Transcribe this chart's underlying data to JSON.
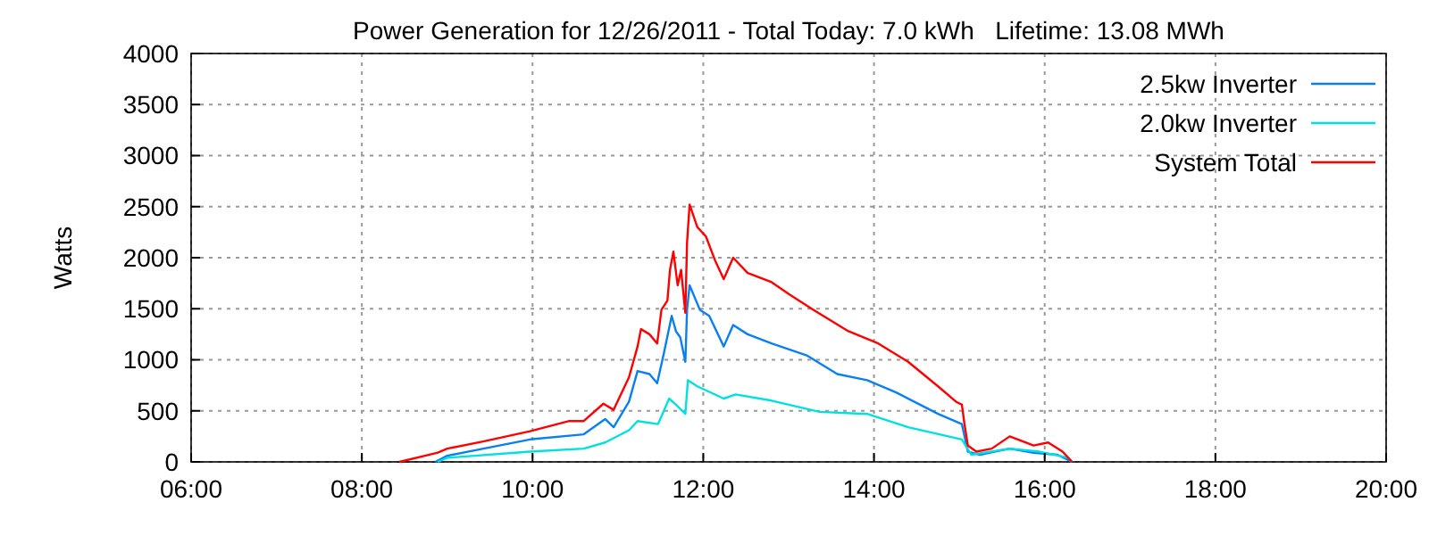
{
  "chart_data": {
    "type": "line",
    "title": "Power Generation for 12/26/2011 - Total Today: 7.0 kWh   Lifetime: 13.08 MWh",
    "ylabel": "Watts",
    "xlim": [
      6,
      20
    ],
    "xticks": [
      {
        "value": 6,
        "label": "06:00"
      },
      {
        "value": 8,
        "label": "08:00"
      },
      {
        "value": 10,
        "label": "10:00"
      },
      {
        "value": 12,
        "label": "12:00"
      },
      {
        "value": 14,
        "label": "14:00"
      },
      {
        "value": 16,
        "label": "16:00"
      },
      {
        "value": 18,
        "label": "18:00"
      },
      {
        "value": 20,
        "label": "20:00"
      }
    ],
    "ylim": [
      0,
      4000
    ],
    "yticks": [
      0,
      500,
      1000,
      1500,
      2000,
      2500,
      3000,
      3500,
      4000
    ],
    "grid": true,
    "legend": "top right",
    "line_style": "solid",
    "marker": "none",
    "series": [
      {
        "name": "2.5kw Inverter",
        "color": "#0a80f0",
        "x": [
          8.86,
          9.0,
          9.97,
          10.6,
          10.85,
          10.95,
          11.13,
          11.23,
          11.37,
          11.46,
          11.54,
          11.63,
          11.68,
          11.73,
          11.79,
          11.81,
          11.84,
          11.96,
          12.07,
          12.24,
          12.35,
          12.52,
          12.8,
          13.22,
          13.57,
          13.92,
          14.26,
          14.75,
          15.03,
          15.1,
          15.24,
          15.59,
          15.87,
          16.15,
          16.32
        ],
        "values": [
          0,
          60,
          220,
          270,
          420,
          340,
          590,
          890,
          860,
          770,
          1070,
          1430,
          1280,
          1220,
          980,
          1490,
          1730,
          1490,
          1430,
          1130,
          1340,
          1250,
          1160,
          1040,
          860,
          800,
          680,
          470,
          370,
          100,
          70,
          130,
          90,
          70,
          0
        ]
      },
      {
        "name": "2.0kw Inverter",
        "color": "#00e0e0",
        "x": [
          8.89,
          9.0,
          9.97,
          10.6,
          10.85,
          11.13,
          11.23,
          11.47,
          11.6,
          11.68,
          11.79,
          11.82,
          11.93,
          12.24,
          12.38,
          12.8,
          13.36,
          13.92,
          14.4,
          15.03,
          15.14,
          15.59,
          15.94,
          16.28,
          16.32
        ],
        "values": [
          0,
          40,
          100,
          130,
          190,
          310,
          400,
          370,
          620,
          560,
          470,
          800,
          740,
          620,
          660,
          600,
          490,
          470,
          340,
          220,
          70,
          130,
          100,
          40,
          0
        ]
      },
      {
        "name": "System Total",
        "color": "#ff0000",
        "x": [
          8.44,
          8.89,
          9.0,
          9.42,
          9.97,
          10.43,
          10.6,
          10.83,
          10.95,
          11.13,
          11.23,
          11.27,
          11.37,
          11.46,
          11.51,
          11.58,
          11.61,
          11.65,
          11.7,
          11.74,
          11.79,
          11.81,
          11.84,
          11.93,
          12.03,
          12.14,
          12.24,
          12.35,
          12.52,
          12.8,
          13.01,
          13.29,
          13.7,
          14.05,
          14.4,
          14.75,
          14.96,
          15.03,
          15.06,
          15.1,
          15.2,
          15.38,
          15.59,
          15.87,
          16.04,
          16.21,
          16.32
        ],
        "values": [
          0,
          90,
          130,
          200,
          300,
          400,
          400,
          570,
          510,
          830,
          1130,
          1300,
          1250,
          1160,
          1490,
          1580,
          1880,
          2060,
          1730,
          1880,
          1460,
          2150,
          2520,
          2300,
          2210,
          1970,
          1790,
          2000,
          1850,
          1760,
          1640,
          1490,
          1280,
          1160,
          980,
          740,
          590,
          560,
          370,
          160,
          100,
          130,
          250,
          160,
          190,
          100,
          0
        ]
      }
    ]
  }
}
